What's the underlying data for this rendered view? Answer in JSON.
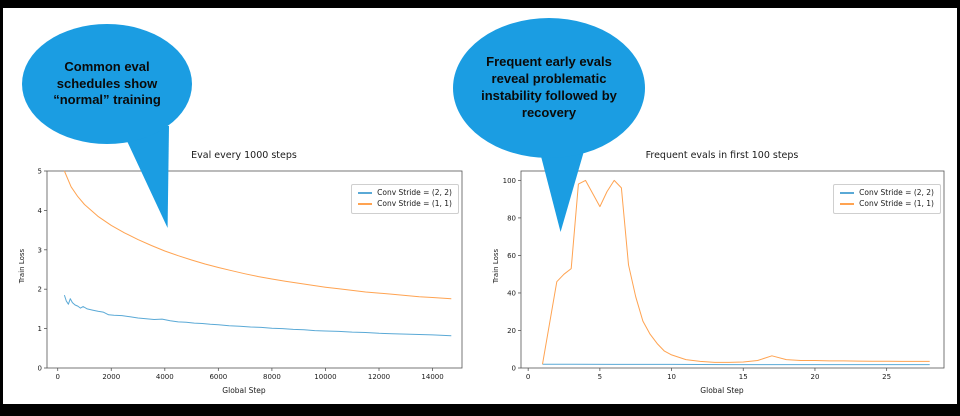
{
  "slide": {
    "background": "#ffffff",
    "frame_color": "#000000"
  },
  "callouts": [
    {
      "text": "Common eval schedules show “normal” training",
      "color": "#1b9de2"
    },
    {
      "text": "Frequent early evals reveal problematic instability followed by recovery",
      "color": "#1b9de2"
    }
  ],
  "chart_data": [
    {
      "type": "line",
      "title": "Eval every 1000 steps",
      "xlabel": "Global Step",
      "ylabel": "Train Loss",
      "xlim": [
        -400,
        15100
      ],
      "ylim": [
        0,
        5
      ],
      "xticks": [
        0,
        2000,
        4000,
        6000,
        8000,
        10000,
        12000,
        14000
      ],
      "yticks": [
        0,
        1,
        2,
        3,
        4,
        5
      ],
      "grid": false,
      "legend_position": "upper right",
      "series": [
        {
          "name": "Conv Stride =  (2, 2)",
          "color": "#5aa9d6",
          "points": [
            [
              250,
              1.85
            ],
            [
              320,
              1.7
            ],
            [
              400,
              1.62
            ],
            [
              470,
              1.76
            ],
            [
              550,
              1.66
            ],
            [
              650,
              1.6
            ],
            [
              750,
              1.57
            ],
            [
              850,
              1.52
            ],
            [
              950,
              1.56
            ],
            [
              1100,
              1.5
            ],
            [
              1300,
              1.47
            ],
            [
              1500,
              1.44
            ],
            [
              1700,
              1.42
            ],
            [
              1900,
              1.35
            ],
            [
              2100,
              1.34
            ],
            [
              2400,
              1.33
            ],
            [
              2700,
              1.3
            ],
            [
              3000,
              1.27
            ],
            [
              3300,
              1.25
            ],
            [
              3600,
              1.23
            ],
            [
              3900,
              1.24
            ],
            [
              4200,
              1.2
            ],
            [
              4500,
              1.17
            ],
            [
              4800,
              1.16
            ],
            [
              5100,
              1.14
            ],
            [
              5400,
              1.13
            ],
            [
              5700,
              1.11
            ],
            [
              6000,
              1.1
            ],
            [
              6400,
              1.07
            ],
            [
              6800,
              1.06
            ],
            [
              7200,
              1.04
            ],
            [
              7600,
              1.03
            ],
            [
              8000,
              1.01
            ],
            [
              8400,
              1.0
            ],
            [
              8800,
              0.98
            ],
            [
              9200,
              0.97
            ],
            [
              9600,
              0.95
            ],
            [
              10000,
              0.94
            ],
            [
              10500,
              0.93
            ],
            [
              11000,
              0.91
            ],
            [
              11500,
              0.9
            ],
            [
              12000,
              0.88
            ],
            [
              12500,
              0.87
            ],
            [
              13000,
              0.86
            ],
            [
              13500,
              0.85
            ],
            [
              14000,
              0.84
            ],
            [
              14700,
              0.82
            ]
          ]
        },
        {
          "name": "Conv Stride =  (1, 1)",
          "color": "#ffa351",
          "points": [
            [
              250,
              5.0
            ],
            [
              500,
              4.6
            ],
            [
              750,
              4.35
            ],
            [
              1000,
              4.15
            ],
            [
              1500,
              3.85
            ],
            [
              2000,
              3.62
            ],
            [
              2500,
              3.43
            ],
            [
              3000,
              3.26
            ],
            [
              3500,
              3.11
            ],
            [
              4000,
              2.97
            ],
            [
              4500,
              2.85
            ],
            [
              5000,
              2.74
            ],
            [
              5500,
              2.64
            ],
            [
              6000,
              2.55
            ],
            [
              6500,
              2.47
            ],
            [
              7000,
              2.39
            ],
            [
              7500,
              2.32
            ],
            [
              8000,
              2.26
            ],
            [
              8500,
              2.2
            ],
            [
              9000,
              2.15
            ],
            [
              9500,
              2.1
            ],
            [
              10000,
              2.05
            ],
            [
              10500,
              2.01
            ],
            [
              11000,
              1.97
            ],
            [
              11500,
              1.93
            ],
            [
              12000,
              1.9
            ],
            [
              12500,
              1.87
            ],
            [
              13000,
              1.84
            ],
            [
              13500,
              1.81
            ],
            [
              14000,
              1.79
            ],
            [
              14700,
              1.76
            ]
          ]
        }
      ]
    },
    {
      "type": "line",
      "title": "Frequent evals in first 100 steps",
      "xlabel": "Global Step",
      "ylabel": "Train Loss",
      "xlim": [
        -0.5,
        29
      ],
      "ylim": [
        0,
        105
      ],
      "xticks": [
        0,
        5,
        10,
        15,
        20,
        25
      ],
      "yticks": [
        0,
        20,
        40,
        60,
        80,
        100
      ],
      "grid": false,
      "legend_position": "upper right",
      "series": [
        {
          "name": "Conv Stride =  (2, 2)",
          "color": "#5aa9d6",
          "points": [
            [
              1,
              2
            ],
            [
              3,
              2
            ],
            [
              6,
              1.9
            ],
            [
              10,
              1.9
            ],
            [
              14,
              1.8
            ],
            [
              18,
              1.8
            ],
            [
              22,
              1.8
            ],
            [
              28,
              1.8
            ]
          ]
        },
        {
          "name": "Conv Stride =  (1, 1)",
          "color": "#ffa351",
          "points": [
            [
              1,
              2
            ],
            [
              2,
              46
            ],
            [
              2.5,
              50
            ],
            [
              3,
              53
            ],
            [
              3.5,
              98
            ],
            [
              4,
              100
            ],
            [
              4.5,
              93
            ],
            [
              5,
              86
            ],
            [
              5.5,
              94
            ],
            [
              6,
              100
            ],
            [
              6.5,
              96
            ],
            [
              7,
              55
            ],
            [
              7.5,
              38
            ],
            [
              8,
              25
            ],
            [
              8.5,
              18
            ],
            [
              9,
              13
            ],
            [
              9.5,
              9
            ],
            [
              10,
              7
            ],
            [
              11,
              4.5
            ],
            [
              12,
              3.5
            ],
            [
              13,
              3
            ],
            [
              14,
              3
            ],
            [
              15,
              3.2
            ],
            [
              16,
              4
            ],
            [
              17,
              6.5
            ],
            [
              18,
              4.5
            ],
            [
              19,
              4
            ],
            [
              20,
              4
            ],
            [
              21,
              3.8
            ],
            [
              22,
              3.8
            ],
            [
              23,
              3.7
            ],
            [
              24,
              3.6
            ],
            [
              25,
              3.6
            ],
            [
              26,
              3.5
            ],
            [
              27,
              3.5
            ],
            [
              28,
              3.5
            ]
          ]
        }
      ]
    }
  ]
}
